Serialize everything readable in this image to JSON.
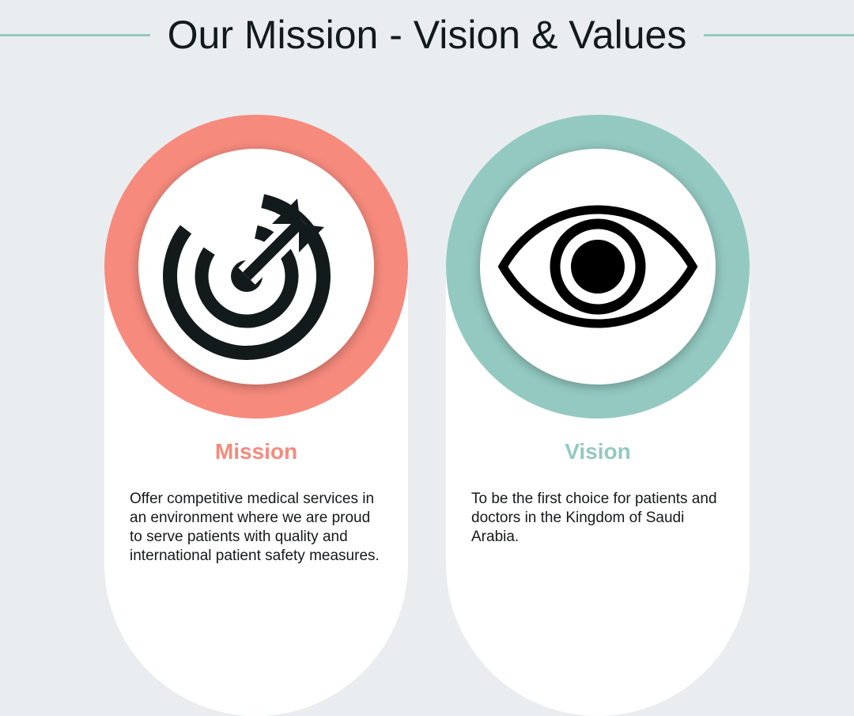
{
  "header": {
    "title": "Our Mission - Vision & Values"
  },
  "colors": {
    "accent_mission": "#f68a7d",
    "accent_vision": "#93c9c1",
    "background": "#e9edf0"
  },
  "cards": [
    {
      "icon": "target-icon",
      "title": "Mission",
      "text": "Offer competitive medical services in an environment where we are proud to serve patients with quality and international patient safety measures."
    },
    {
      "icon": "eye-icon",
      "title": "Vision",
      "text": "To be the first choice for patients and doctors in the Kingdom of Saudi Arabia."
    }
  ]
}
